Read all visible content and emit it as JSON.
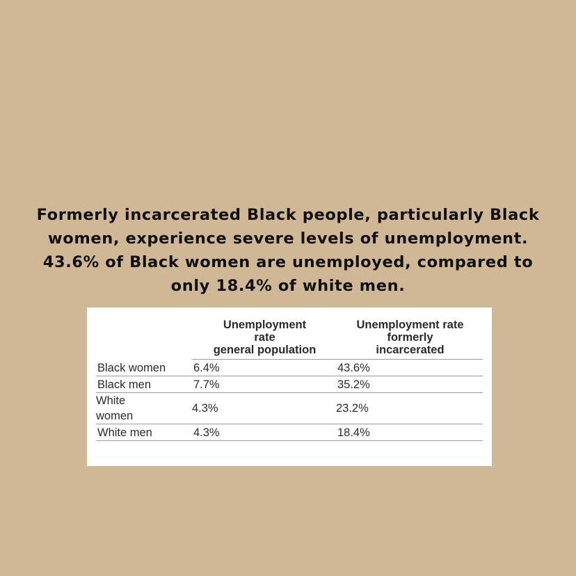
{
  "headline": {
    "lines": [
      "Formerly incarcerated Black people, particularly Black",
      "women, experience severe levels of unemployment.",
      "43.6% of Black women are unemployed, compared to",
      "only 18.4% of white men."
    ]
  },
  "chart_data": {
    "type": "table",
    "columns": [
      {
        "lines": [
          "Unemployment",
          "rate",
          "general population"
        ]
      },
      {
        "lines": [
          "Unemployment rate",
          "formerly",
          "incarcerated"
        ]
      }
    ],
    "rows": [
      {
        "label_lines": [
          "Black women"
        ],
        "general_population": "6.4%",
        "formerly_incarcerated": "43.6%"
      },
      {
        "label_lines": [
          "Black men"
        ],
        "general_population": "7.7%",
        "formerly_incarcerated": "35.2%"
      },
      {
        "label_lines": [
          "White",
          "women"
        ],
        "general_population": "4.3%",
        "formerly_incarcerated": "23.2%"
      },
      {
        "label_lines": [
          "White men"
        ],
        "general_population": "4.3%",
        "formerly_incarcerated": "18.4%"
      }
    ],
    "values": {
      "general_population": [
        6.4,
        7.7,
        4.3,
        4.3
      ],
      "formerly_incarcerated": [
        43.6,
        35.2,
        23.2,
        18.4
      ]
    }
  }
}
